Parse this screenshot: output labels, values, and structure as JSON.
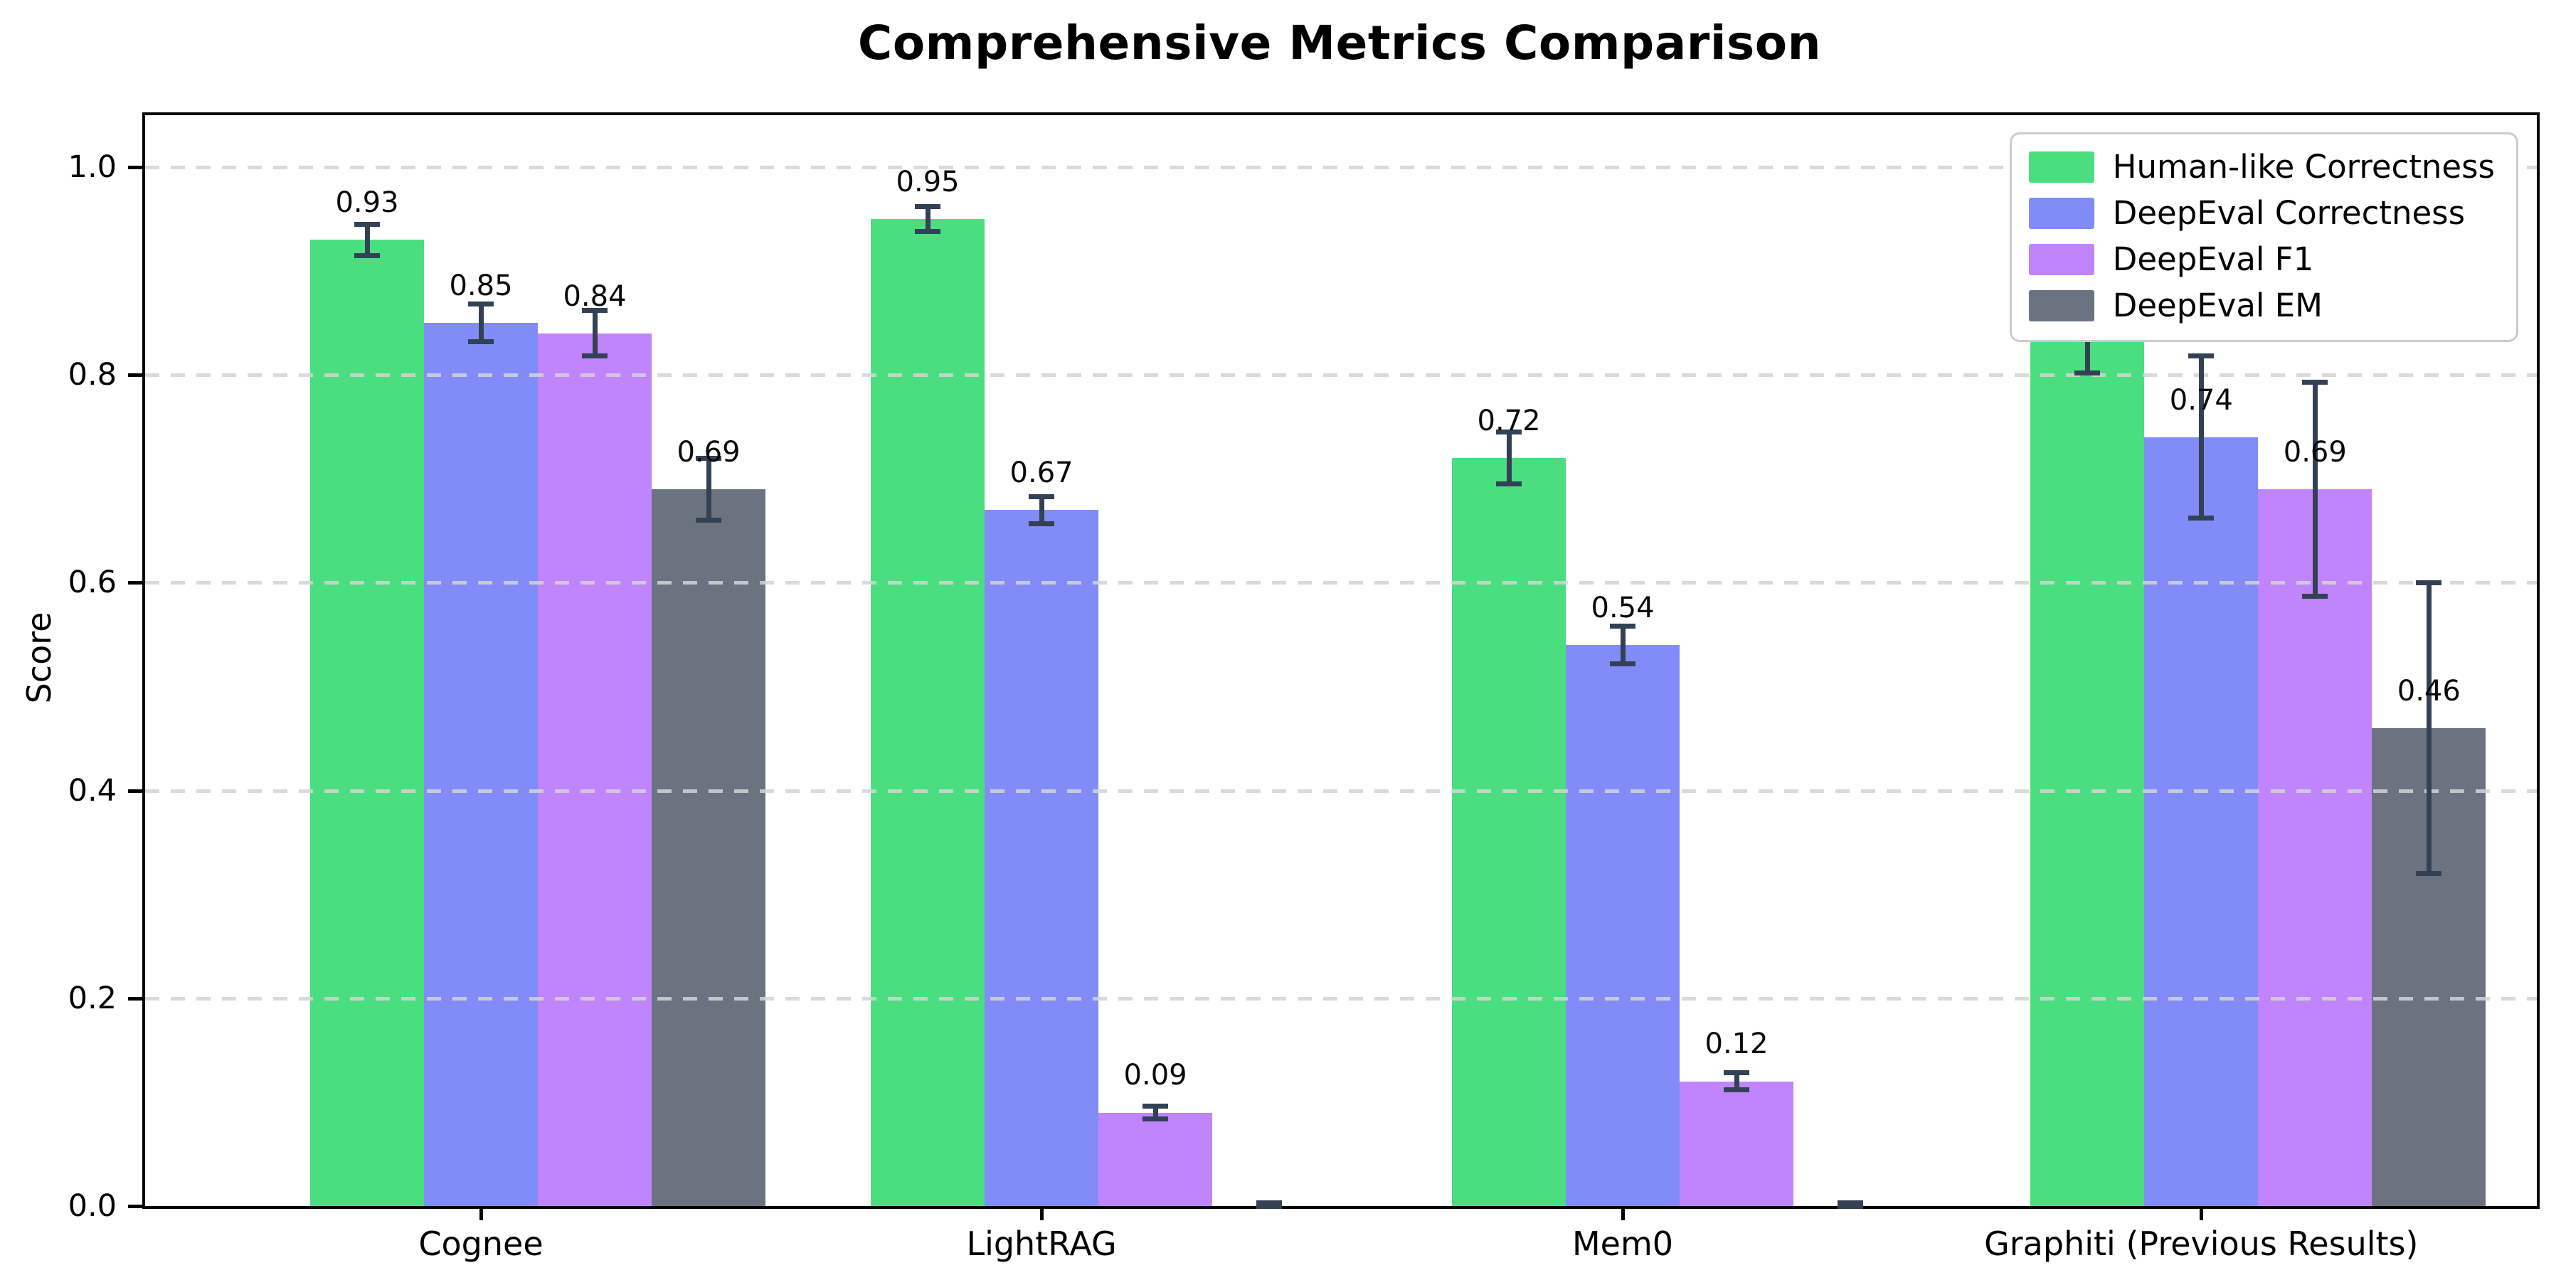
{
  "chart_data": {
    "type": "bar",
    "title": "Comprehensive Metrics Comparison",
    "ylabel": "Score",
    "xlabel": "",
    "ylim": [
      0,
      1.05
    ],
    "yticks": [
      0.0,
      0.2,
      0.4,
      0.6,
      0.8,
      1.0
    ],
    "grid": "horizontal-dashed",
    "grid_color": "#d4d4d4",
    "legend_position": "upper right",
    "error_bar_color": "#334155",
    "value_label_offset": 0.02,
    "categories": [
      "Cognee",
      "LightRAG",
      "Mem0",
      "Graphiti (Previous Results)"
    ],
    "series": [
      {
        "name": "Human-like Correctness",
        "color": "#4ade80",
        "values": [
          0.93,
          0.95,
          0.72,
          0.88
        ],
        "errors": [
          0.015,
          0.012,
          0.025,
          0.078
        ],
        "labels": [
          "0.93",
          "0.95",
          "0.72",
          "0.88"
        ]
      },
      {
        "name": "DeepEval Correctness",
        "color": "#818cf8",
        "values": [
          0.85,
          0.67,
          0.54,
          0.74
        ],
        "errors": [
          0.018,
          0.013,
          0.018,
          0.078
        ],
        "labels": [
          "0.85",
          "0.67",
          "0.54",
          "0.74"
        ]
      },
      {
        "name": "DeepEval F1",
        "color": "#c084fc",
        "values": [
          0.84,
          0.09,
          0.12,
          0.69
        ],
        "errors": [
          0.022,
          0.006,
          0.008,
          0.103
        ],
        "labels": [
          "0.84",
          "0.09",
          "0.12",
          "0.69"
        ]
      },
      {
        "name": "DeepEval EM",
        "color": "#6b7280",
        "values": [
          0.69,
          0.0,
          0.0,
          0.46
        ],
        "errors": [
          0.03,
          0.003,
          0.003,
          0.14
        ],
        "labels": [
          "0.69",
          null,
          null,
          "0.46"
        ]
      }
    ]
  }
}
